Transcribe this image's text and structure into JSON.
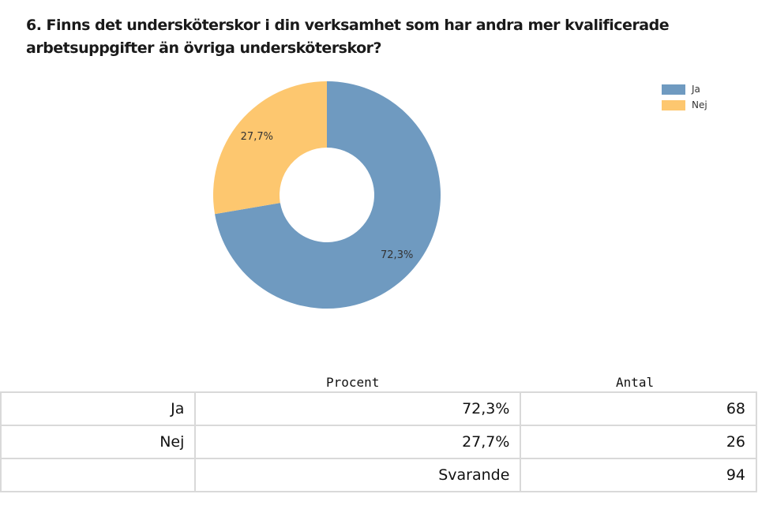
{
  "title_line1": "6. Finns det undersköterskor i din verksamhet som har andra mer kvalificerade",
  "title_line2": "arbetsuppgifter än övriga undersköterskor?",
  "chart_data": {
    "type": "pie",
    "title": "6. Finns det undersköterskor i din verksamhet som har andra mer kvalificerade arbetsuppgifter än övriga undersköterskor?",
    "categories": [
      "Ja",
      "Nej"
    ],
    "values": [
      72.3,
      27.7
    ],
    "labels": [
      "72,3%",
      "27,7%"
    ],
    "colors": [
      "#6f9ac0",
      "#fdc76f"
    ],
    "legend": {
      "placement": "top-right",
      "entries": [
        "Ja",
        "Nej"
      ]
    },
    "donut": true
  },
  "table": {
    "headers": {
      "procent": "Procent",
      "antal": "Antal"
    },
    "rows": [
      {
        "label": "Ja",
        "procent": "72,3%",
        "antal": "68"
      },
      {
        "label": "Nej",
        "procent": "27,7%",
        "antal": "26"
      }
    ],
    "total": {
      "label": "Svarande",
      "antal": "94"
    }
  }
}
